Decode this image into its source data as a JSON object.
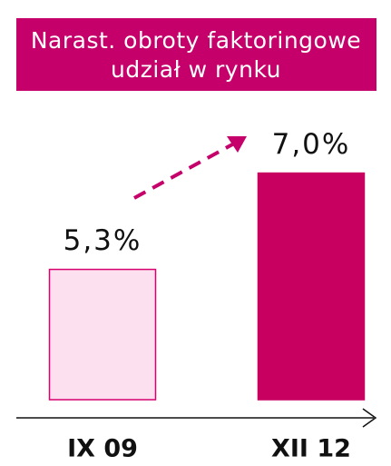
{
  "chart_data": {
    "type": "bar",
    "title": [
      "Narast. obroty faktoringowe",
      "udział w rynku"
    ],
    "categories": [
      "IX 09",
      "XII 12"
    ],
    "values": [
      5.3,
      7.0
    ],
    "value_labels": [
      "5,3%",
      "7,0%"
    ],
    "colors": [
      "#fde0ef",
      "#c8005f"
    ],
    "ylim": [
      3,
      8.5
    ]
  }
}
